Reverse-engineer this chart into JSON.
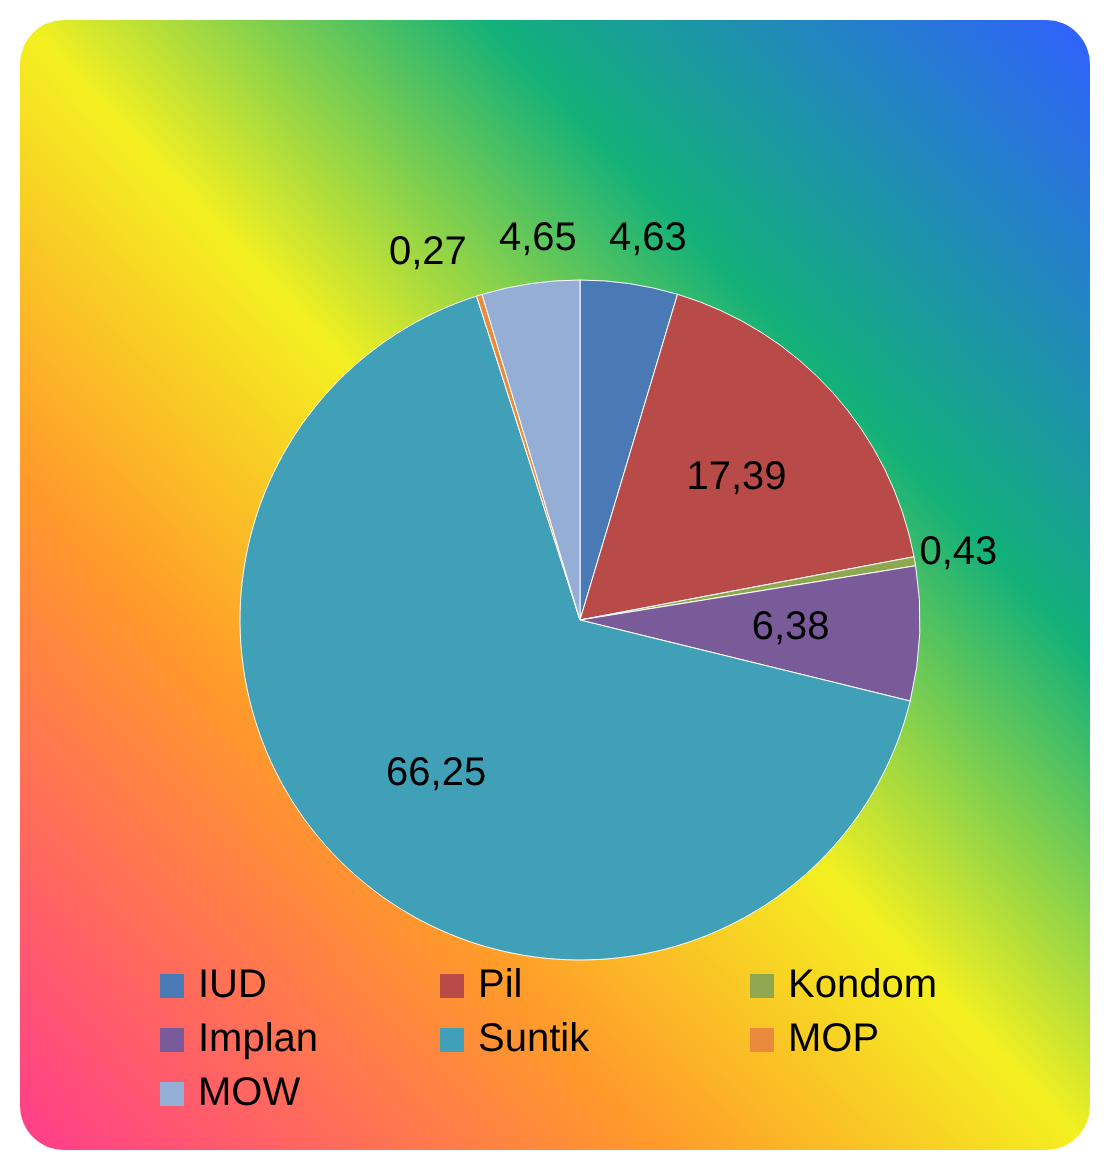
{
  "chart_data": {
    "type": "pie",
    "categories": [
      "IUD",
      "Pil",
      "Kondom",
      "Implan",
      "Suntik",
      "MOP",
      "MOW"
    ],
    "values": [
      4.63,
      17.39,
      0.43,
      6.38,
      66.25,
      0.27,
      4.65
    ],
    "value_labels": [
      "4,63",
      "17,39",
      "0,43",
      "6,38",
      "66,25",
      "0,27",
      "4,65"
    ],
    "colors": [
      "#4a7ab5",
      "#b84a47",
      "#8fa84f",
      "#7a5b9a",
      "#3fa0b8",
      "#e98a3c",
      "#94aed6"
    ],
    "legend": "bottom"
  }
}
